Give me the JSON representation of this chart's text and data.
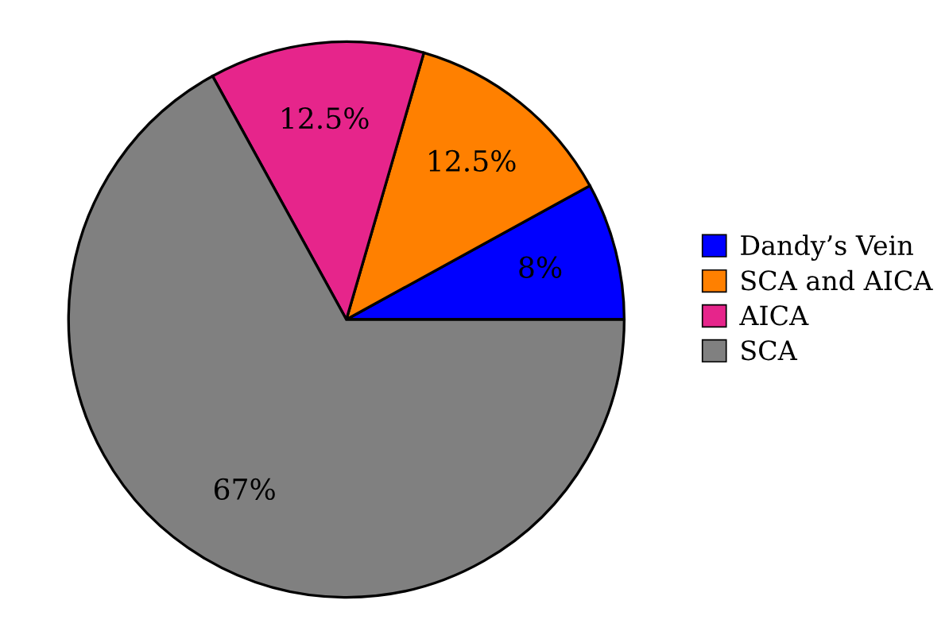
{
  "chart_data": {
    "type": "pie",
    "categories": [
      "Dandy’s Vein",
      "SCA and AICA",
      "AICA",
      "SCA"
    ],
    "values": [
      8,
      12.5,
      12.5,
      67
    ],
    "colors": [
      "#0000ff",
      "#ff8000",
      "#e6258b",
      "#808080"
    ],
    "value_labels": [
      "8%",
      "12.5%",
      "12.5%",
      "67%"
    ],
    "legend": "right"
  }
}
